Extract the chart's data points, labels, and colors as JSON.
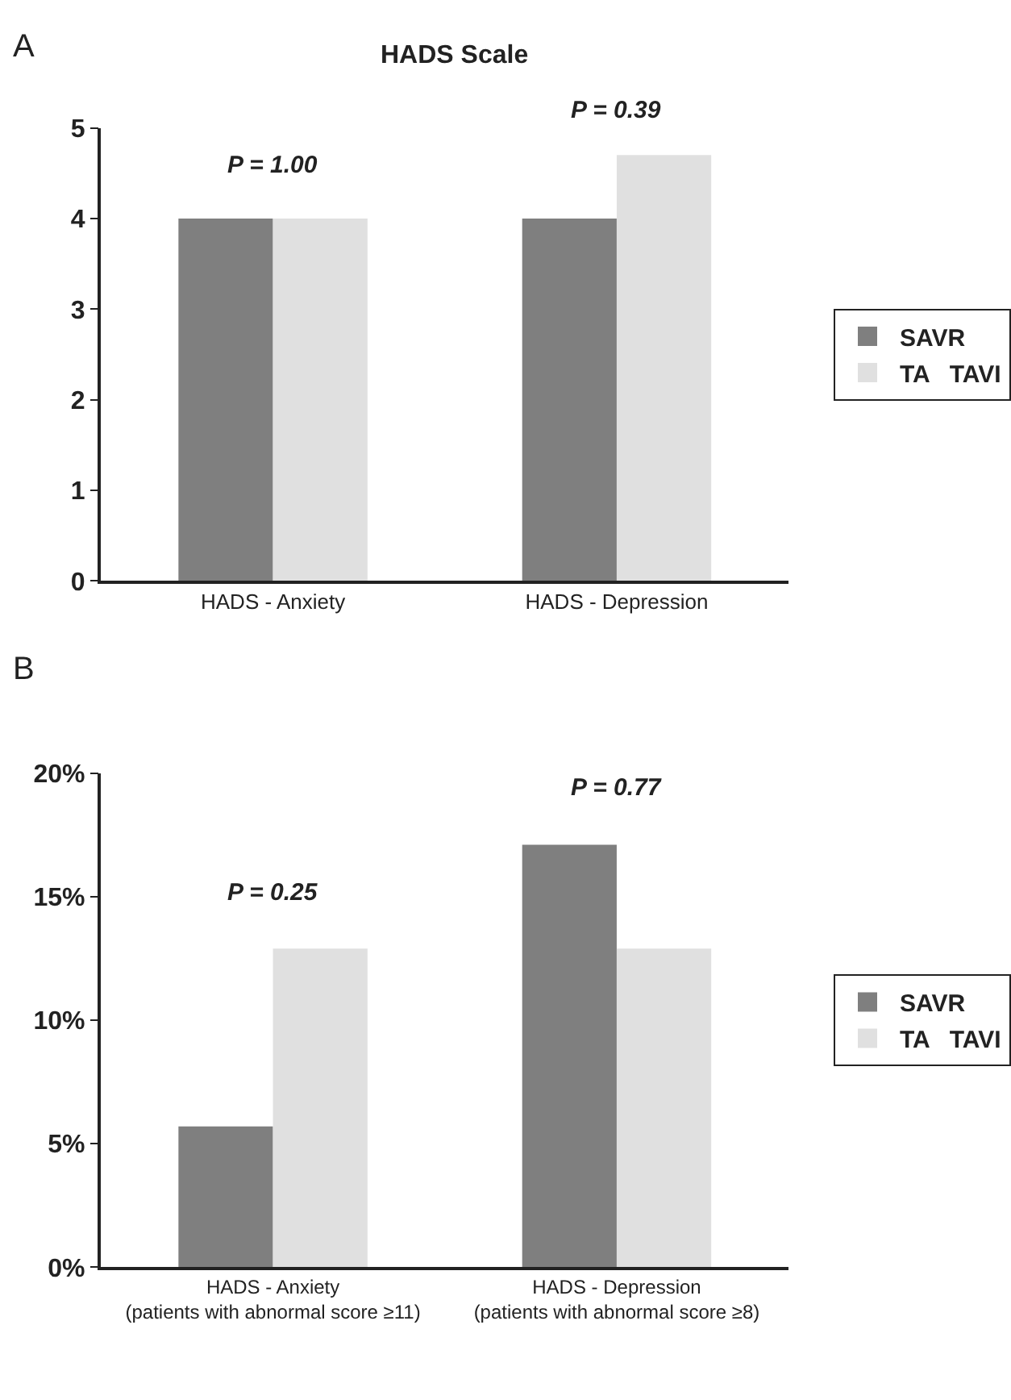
{
  "chart_data": [
    {
      "type": "bar",
      "title": "HADS Scale",
      "categories": [
        "HADS - Anxiety",
        "HADS - Depression"
      ],
      "series": [
        {
          "name": "SAVR",
          "color": "#7f7f7f",
          "values": [
            4,
            4
          ]
        },
        {
          "name": "TA   TAVI",
          "color": "#e0e0e0",
          "values": [
            4,
            4.7
          ]
        }
      ],
      "ylim": [
        0,
        5
      ],
      "yticks": [
        0,
        1,
        2,
        3,
        4,
        5
      ],
      "legend": "right",
      "annotations": [
        "A",
        "P = 1.00",
        "P = 0.39"
      ]
    },
    {
      "type": "bar",
      "categories": [
        "HADS - Anxiety\n(patients with abnormal score ≥11)",
        "HADS - Depression\n(patients with abnormal score ≥8)"
      ],
      "series": [
        {
          "name": "SAVR",
          "color": "#7f7f7f",
          "values": [
            5.7,
            17.1
          ]
        },
        {
          "name": "TA   TAVI",
          "color": "#e0e0e0",
          "values": [
            12.9,
            12.9
          ]
        }
      ],
      "ylim": [
        0,
        20
      ],
      "yticks": [
        {
          "value": 0,
          "label": "0%"
        },
        {
          "value": 5,
          "label": "5%"
        },
        {
          "value": 10,
          "label": "10%"
        },
        {
          "value": 15,
          "label": "15%"
        },
        {
          "value": 20,
          "label": "20%"
        }
      ],
      "legend": "right",
      "annotations": [
        "B",
        "P = 0.25",
        "P = 0.77"
      ]
    }
  ]
}
